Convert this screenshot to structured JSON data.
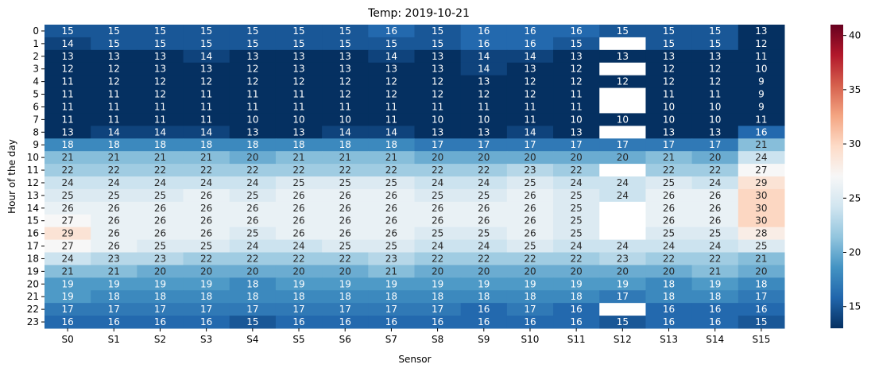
{
  "chart_data": {
    "type": "heatmap",
    "title": "Temp: 2019-10-21",
    "xlabel": "Sensor",
    "ylabel": "Hour of the day",
    "x": [
      "S0",
      "S1",
      "S2",
      "S3",
      "S4",
      "S5",
      "S6",
      "S7",
      "S8",
      "S9",
      "S10",
      "S11",
      "S12",
      "S13",
      "S14",
      "S15"
    ],
    "y": [
      "0",
      "1",
      "2",
      "3",
      "4",
      "5",
      "6",
      "7",
      "8",
      "9",
      "10",
      "11",
      "12",
      "13",
      "14",
      "15",
      "16",
      "17",
      "18",
      "19",
      "20",
      "21",
      "22",
      "23"
    ],
    "values": [
      [
        15,
        15,
        15,
        15,
        15,
        15,
        15,
        16,
        15,
        16,
        16,
        16,
        15,
        15,
        15,
        13
      ],
      [
        14,
        15,
        15,
        15,
        15,
        15,
        15,
        15,
        15,
        16,
        16,
        15,
        null,
        15,
        15,
        12
      ],
      [
        13,
        13,
        13,
        14,
        13,
        13,
        13,
        14,
        13,
        14,
        14,
        13,
        13,
        13,
        13,
        11
      ],
      [
        12,
        12,
        13,
        13,
        12,
        13,
        13,
        13,
        13,
        14,
        13,
        12,
        null,
        12,
        12,
        10
      ],
      [
        11,
        12,
        12,
        12,
        12,
        12,
        12,
        12,
        12,
        13,
        12,
        12,
        12,
        12,
        12,
        9
      ],
      [
        11,
        11,
        12,
        11,
        11,
        11,
        12,
        12,
        12,
        12,
        12,
        11,
        null,
        11,
        11,
        9
      ],
      [
        11,
        11,
        11,
        11,
        11,
        11,
        11,
        11,
        11,
        11,
        11,
        11,
        null,
        10,
        10,
        9
      ],
      [
        11,
        11,
        11,
        11,
        10,
        10,
        10,
        11,
        10,
        10,
        11,
        10,
        10,
        10,
        10,
        11
      ],
      [
        13,
        14,
        14,
        14,
        13,
        13,
        14,
        14,
        13,
        13,
        14,
        13,
        null,
        13,
        13,
        16
      ],
      [
        18,
        18,
        18,
        18,
        18,
        18,
        18,
        18,
        17,
        17,
        17,
        17,
        17,
        17,
        17,
        21
      ],
      [
        21,
        21,
        21,
        21,
        20,
        21,
        21,
        21,
        20,
        20,
        20,
        20,
        20,
        21,
        20,
        24
      ],
      [
        22,
        22,
        22,
        22,
        22,
        22,
        22,
        22,
        22,
        22,
        23,
        22,
        null,
        22,
        22,
        27
      ],
      [
        24,
        24,
        24,
        24,
        24,
        25,
        25,
        25,
        24,
        24,
        25,
        24,
        24,
        25,
        24,
        29
      ],
      [
        25,
        25,
        25,
        26,
        25,
        26,
        26,
        26,
        25,
        25,
        26,
        25,
        24,
        26,
        26,
        30
      ],
      [
        26,
        26,
        26,
        26,
        26,
        26,
        26,
        26,
        26,
        26,
        26,
        25,
        null,
        26,
        26,
        30
      ],
      [
        27,
        26,
        26,
        26,
        26,
        26,
        26,
        26,
        26,
        26,
        26,
        25,
        null,
        26,
        26,
        30
      ],
      [
        29,
        26,
        26,
        26,
        25,
        26,
        26,
        26,
        25,
        25,
        26,
        25,
        null,
        25,
        25,
        28
      ],
      [
        27,
        26,
        25,
        25,
        24,
        24,
        25,
        25,
        24,
        24,
        25,
        24,
        24,
        24,
        24,
        25
      ],
      [
        24,
        23,
        23,
        22,
        22,
        22,
        22,
        23,
        22,
        22,
        22,
        22,
        23,
        22,
        22,
        21
      ],
      [
        21,
        21,
        20,
        20,
        20,
        20,
        20,
        21,
        20,
        20,
        20,
        20,
        20,
        20,
        21,
        20
      ],
      [
        19,
        19,
        19,
        19,
        18,
        19,
        19,
        19,
        19,
        19,
        19,
        19,
        19,
        18,
        19,
        18
      ],
      [
        19,
        18,
        18,
        18,
        18,
        18,
        18,
        18,
        18,
        18,
        18,
        18,
        17,
        18,
        18,
        17
      ],
      [
        17,
        17,
        17,
        17,
        17,
        17,
        17,
        17,
        17,
        16,
        17,
        16,
        null,
        16,
        16,
        16
      ],
      [
        16,
        16,
        16,
        16,
        15,
        16,
        16,
        16,
        16,
        16,
        16,
        16,
        15,
        16,
        16,
        15
      ]
    ],
    "colorbar": {
      "colormap": "RdBu_r",
      "vmin": 13,
      "vmax": 41,
      "ticks": [
        15,
        20,
        25,
        30,
        35,
        40
      ]
    },
    "missing_cells_color": "#ffffff"
  }
}
